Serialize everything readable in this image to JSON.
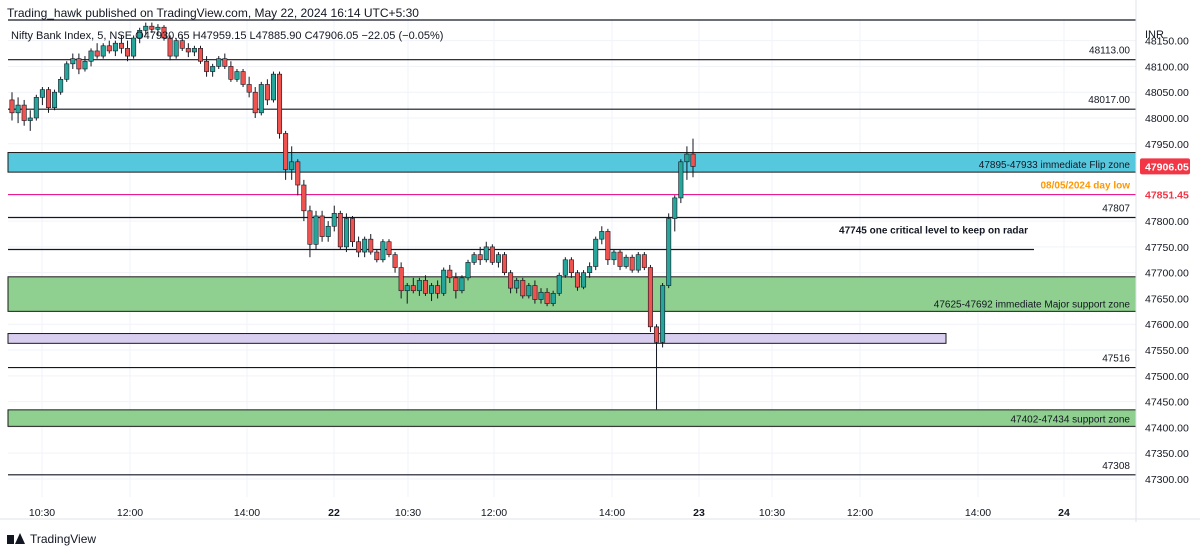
{
  "header": {
    "text": "Trading_hawk published on TradingView.com, May 22, 2024 16:14 UTC+5:30"
  },
  "symbol_info": {
    "name": "Nifty Bank Index, 5, NSE",
    "open": "O47930.65",
    "high": "H47959.15",
    "low": "L47885.90",
    "close": "C47906.05",
    "change": "−22.05 (−0.05%)"
  },
  "footer": {
    "brand": "TradingView"
  },
  "colors": {
    "up": "#26a69a",
    "down": "#ef5350",
    "grid": "#f0f3fa",
    "flip_zone": "#56c8de",
    "support_zone": "#8fcf8f",
    "purple_band": "#d8cdee",
    "price_tag": "#f23645",
    "day_low_text": "#ff9800",
    "day_low_line": "#e91e8c"
  },
  "chart_data": {
    "type": "candlestick",
    "currency": "INR",
    "ylim": [
      47265,
      48190
    ],
    "y_ticks": [
      48150,
      48100,
      48050,
      48000,
      47950,
      47900,
      47850,
      47800,
      47750,
      47700,
      47650,
      47600,
      47550,
      47500,
      47450,
      47400,
      47350,
      47300
    ],
    "y_tick_labels": [
      "48150.00",
      "48100.00",
      "48050.00",
      "48000.00",
      "47950.00",
      "47900.00",
      "47850.00",
      "47800.00",
      "47750.00",
      "47700.00",
      "47650.00",
      "47600.00",
      "47550.00",
      "47500.00",
      "47450.00",
      "47400.00",
      "47350.00",
      "47300.00"
    ],
    "x_labels": [
      "10:30",
      "12:00",
      "14:00",
      "22",
      "10:30",
      "12:00",
      "14:00",
      "23",
      "10:30",
      "12:00",
      "14:00",
      "24"
    ],
    "last_price": "47906.05",
    "levels": [
      {
        "kind": "line",
        "price": 48190,
        "label": ""
      },
      {
        "kind": "line",
        "price": 48113,
        "label": "48113.00"
      },
      {
        "kind": "line",
        "price": 48017,
        "label": "48017.00"
      },
      {
        "kind": "zone",
        "low": 47895,
        "high": 47933,
        "label": "47895-47933 immediate Flip zone",
        "color": "flip_zone"
      },
      {
        "kind": "line",
        "price": 47851.45,
        "label": "08/05/2024 day low",
        "color": "day_low_line",
        "tag": "47851.45"
      },
      {
        "kind": "line",
        "price": 47807,
        "label": "47807"
      },
      {
        "kind": "line",
        "price": 47745,
        "label": "47745 one critical level to keep on radar",
        "partial": true
      },
      {
        "kind": "zone",
        "low": 47625,
        "high": 47692,
        "label": "47625-47692 immediate Major support zone",
        "color": "support_zone"
      },
      {
        "kind": "zone",
        "low": 47563,
        "high": 47582,
        "label": "",
        "color": "purple_band",
        "partial": true
      },
      {
        "kind": "line",
        "price": 47516,
        "label": "47516"
      },
      {
        "kind": "zone",
        "low": 47402,
        "high": 47434,
        "label": "47402-47434 support zone",
        "color": "support_zone"
      },
      {
        "kind": "line",
        "price": 47308,
        "label": "47308"
      }
    ],
    "candles": [
      [
        48035,
        48050,
        47995,
        48010
      ],
      [
        48010,
        48040,
        47990,
        48025
      ],
      [
        48025,
        48035,
        47985,
        47995
      ],
      [
        47995,
        48015,
        47975,
        48000
      ],
      [
        48000,
        48045,
        47995,
        48040
      ],
      [
        48040,
        48060,
        48025,
        48055
      ],
      [
        48055,
        48060,
        48010,
        48020
      ],
      [
        48020,
        48055,
        48015,
        48050
      ],
      [
        48050,
        48080,
        48045,
        48075
      ],
      [
        48075,
        48110,
        48070,
        48105
      ],
      [
        48105,
        48125,
        48095,
        48115
      ],
      [
        48115,
        48125,
        48085,
        48095
      ],
      [
        48095,
        48120,
        48090,
        48110
      ],
      [
        48110,
        48135,
        48100,
        48130
      ],
      [
        48130,
        48145,
        48115,
        48120
      ],
      [
        48120,
        48145,
        48115,
        48140
      ],
      [
        48140,
        48150,
        48125,
        48130
      ],
      [
        48130,
        48150,
        48120,
        48145
      ],
      [
        48145,
        48160,
        48125,
        48135
      ],
      [
        48135,
        48150,
        48110,
        48120
      ],
      [
        48120,
        48160,
        48115,
        48155
      ],
      [
        48155,
        48175,
        48145,
        48170
      ],
      [
        48170,
        48185,
        48160,
        48178
      ],
      [
        48178,
        48185,
        48165,
        48172
      ],
      [
        48172,
        48182,
        48160,
        48176
      ],
      [
        48176,
        48180,
        48150,
        48155
      ],
      [
        48155,
        48160,
        48112,
        48120
      ],
      [
        48120,
        48155,
        48115,
        48150
      ],
      [
        48150,
        48160,
        48130,
        48135
      ],
      [
        48135,
        48145,
        48118,
        48128
      ],
      [
        48128,
        48140,
        48120,
        48135
      ],
      [
        48135,
        48140,
        48105,
        48110
      ],
      [
        48110,
        48120,
        48080,
        48090
      ],
      [
        48090,
        48105,
        48080,
        48100
      ],
      [
        48100,
        48120,
        48095,
        48115
      ],
      [
        48115,
        48125,
        48095,
        48100
      ],
      [
        48100,
        48110,
        48070,
        48075
      ],
      [
        48075,
        48095,
        48070,
        48090
      ],
      [
        48090,
        48095,
        48060,
        48065
      ],
      [
        48065,
        48080,
        48040,
        48050
      ],
      [
        48050,
        48060,
        48000,
        48010
      ],
      [
        48010,
        48070,
        48005,
        48065
      ],
      [
        48065,
        48075,
        48025,
        48035
      ],
      [
        48035,
        48090,
        48030,
        48085
      ],
      [
        48085,
        48090,
        47960,
        47970
      ],
      [
        47970,
        47975,
        47880,
        47900
      ],
      [
        47900,
        47945,
        47880,
        47915
      ],
      [
        47915,
        47920,
        47850,
        47870
      ],
      [
        47870,
        47880,
        47800,
        47820
      ],
      [
        47820,
        47830,
        47730,
        47755
      ],
      [
        47755,
        47820,
        47745,
        47810
      ],
      [
        47810,
        47820,
        47760,
        47770
      ],
      [
        47770,
        47800,
        47760,
        47790
      ],
      [
        47790,
        47830,
        47780,
        47815
      ],
      [
        47815,
        47820,
        47745,
        47750
      ],
      [
        47750,
        47815,
        47740,
        47805
      ],
      [
        47805,
        47810,
        47750,
        47760
      ],
      [
        47760,
        47770,
        47730,
        47740
      ],
      [
        47740,
        47770,
        47730,
        47765
      ],
      [
        47765,
        47775,
        47735,
        47740
      ],
      [
        47740,
        47745,
        47720,
        47725
      ],
      [
        47725,
        47765,
        47720,
        47760
      ],
      [
        47760,
        47765,
        47730,
        47735
      ],
      [
        47735,
        47740,
        47700,
        47710
      ],
      [
        47710,
        47720,
        47650,
        47665
      ],
      [
        47665,
        47680,
        47640,
        47675
      ],
      [
        47675,
        47690,
        47660,
        47665
      ],
      [
        47665,
        47690,
        47655,
        47685
      ],
      [
        47685,
        47695,
        47655,
        47660
      ],
      [
        47660,
        47680,
        47645,
        47675
      ],
      [
        47675,
        47685,
        47650,
        47660
      ],
      [
        47660,
        47710,
        47655,
        47705
      ],
      [
        47705,
        47715,
        47680,
        47690
      ],
      [
        47690,
        47700,
        47650,
        47665
      ],
      [
        47665,
        47695,
        47660,
        47690
      ],
      [
        47690,
        47725,
        47685,
        47720
      ],
      [
        47720,
        47740,
        47715,
        47735
      ],
      [
        47735,
        47750,
        47715,
        47725
      ],
      [
        47725,
        47760,
        47720,
        47750
      ],
      [
        47750,
        47755,
        47715,
        47720
      ],
      [
        47720,
        47740,
        47710,
        47735
      ],
      [
        47735,
        47740,
        47695,
        47700
      ],
      [
        47700,
        47705,
        47660,
        47670
      ],
      [
        47670,
        47690,
        47660,
        47685
      ],
      [
        47685,
        47690,
        47650,
        47655
      ],
      [
        47655,
        47680,
        47650,
        47675
      ],
      [
        47675,
        47685,
        47640,
        47648
      ],
      [
        47648,
        47670,
        47640,
        47662
      ],
      [
        47662,
        47670,
        47635,
        47640
      ],
      [
        47640,
        47665,
        47635,
        47660
      ],
      [
        47660,
        47700,
        47655,
        47695
      ],
      [
        47695,
        47730,
        47690,
        47725
      ],
      [
        47725,
        47730,
        47690,
        47700
      ],
      [
        47700,
        47705,
        47665,
        47672
      ],
      [
        47672,
        47705,
        47668,
        47700
      ],
      [
        47700,
        47720,
        47690,
        47712
      ],
      [
        47712,
        47770,
        47705,
        47765
      ],
      [
        47765,
        47790,
        47755,
        47780
      ],
      [
        47780,
        47785,
        47715,
        47725
      ],
      [
        47725,
        47745,
        47715,
        47740
      ],
      [
        47740,
        47745,
        47705,
        47712
      ],
      [
        47712,
        47735,
        47708,
        47730
      ],
      [
        47730,
        47735,
        47700,
        47705
      ],
      [
        47705,
        47740,
        47700,
        47735
      ],
      [
        47735,
        47740,
        47705,
        47710
      ],
      [
        47710,
        47715,
        47585,
        47595
      ],
      [
        47595,
        47600,
        47435,
        47565
      ],
      [
        47565,
        47680,
        47555,
        47675
      ],
      [
        47675,
        47815,
        47670,
        47805
      ],
      [
        47805,
        47850,
        47780,
        47845
      ],
      [
        47845,
        47920,
        47835,
        47915
      ],
      [
        47915,
        47945,
        47880,
        47930
      ],
      [
        47930,
        47960,
        47885,
        47906
      ]
    ]
  }
}
